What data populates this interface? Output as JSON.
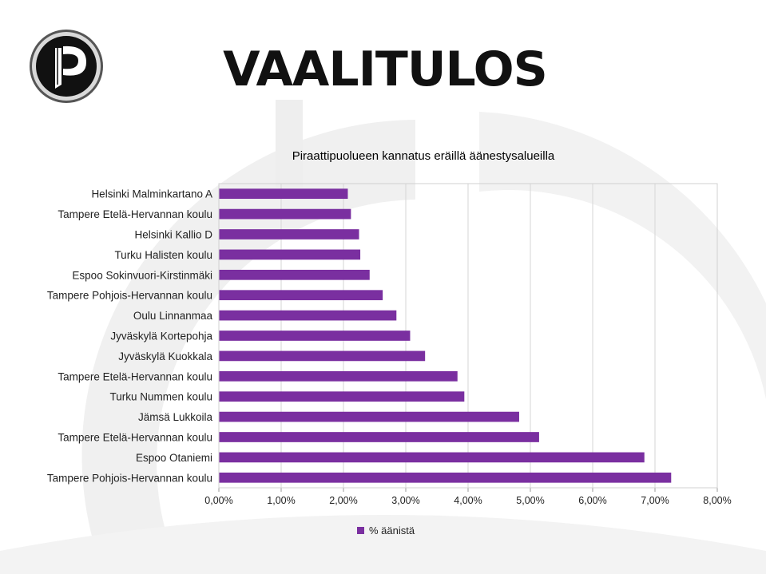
{
  "header": {
    "title": "VAALITULOS"
  },
  "logo": {
    "icon": "pirate-party-logo-icon"
  },
  "chart_data": {
    "type": "bar",
    "orientation": "horizontal",
    "title": "Piraattipuolueen kannatus eräillä äänestysalueilla",
    "categories": [
      "Helsinki Malminkartano A",
      "Tampere Etelä-Hervannan koulu",
      "Helsinki Kallio D",
      "Turku Halisten koulu",
      "Espoo Sokinvuori-Kirstinmäki",
      "Tampere Pohjois-Hervannan koulu",
      "Oulu Linnanmaa",
      "Jyväskylä Kortepohja",
      "Jyväskylä Kuokkala",
      "Tampere Etelä-Hervannan koulu",
      "Turku Nummen koulu",
      "Jämsä Lukkoila",
      "Tampere Etelä-Hervannan koulu",
      "Espoo Otaniemi",
      "Tampere Pohjois-Hervannan koulu"
    ],
    "series": [
      {
        "name": "% äänistä",
        "color": "#7a2fa0",
        "values": [
          2.07,
          2.12,
          2.25,
          2.27,
          2.42,
          2.63,
          2.85,
          3.07,
          3.31,
          3.83,
          3.94,
          4.82,
          5.14,
          6.83,
          7.26
        ]
      }
    ],
    "xlim": [
      0,
      8
    ],
    "xticks": [
      "0,00%",
      "1,00%",
      "2,00%",
      "3,00%",
      "4,00%",
      "5,00%",
      "6,00%",
      "7,00%",
      "8,00%"
    ],
    "grid": true,
    "legend_position": "bottom"
  }
}
